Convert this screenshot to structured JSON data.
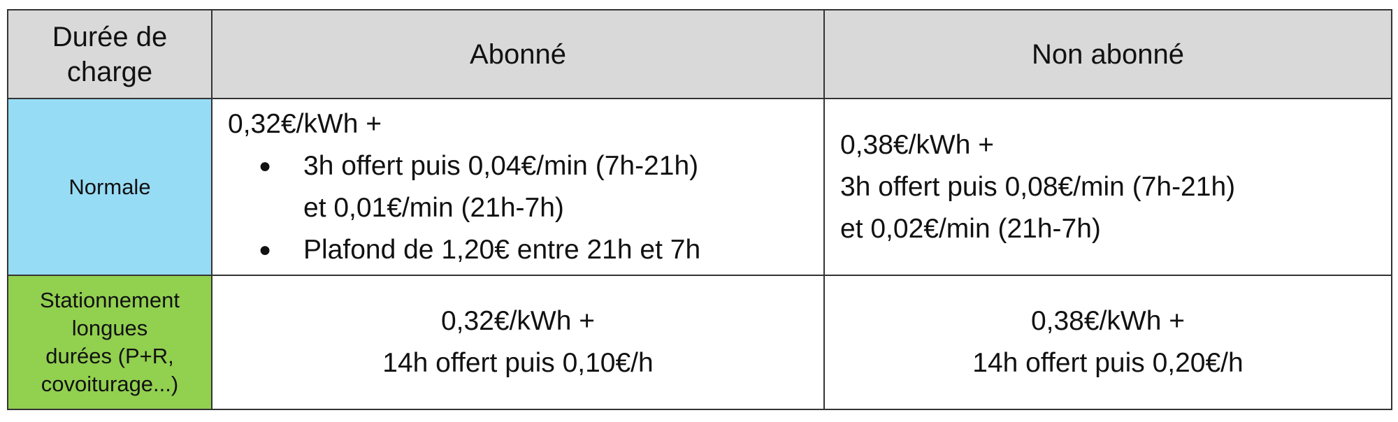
{
  "colors": {
    "header_bg": "#d9d9d9",
    "normale_bg": "#97dcf5",
    "stationnement_bg": "#92d050"
  },
  "header": {
    "col1": [
      "Durée de",
      "charge"
    ],
    "col2": "Abonné",
    "col3": "Non abonné"
  },
  "rows": [
    {
      "label": [
        "Normale"
      ],
      "abonne": {
        "intro": "0,32€/kWh +",
        "bullets": [
          [
            "3h offert puis 0,04€/min (7h-21h)",
            "et 0,01€/min (21h-7h)"
          ],
          [
            "Plafond de 1,20€ entre 21h et 7h"
          ]
        ]
      },
      "non_abonne": [
        "0,38€/kWh +",
        "3h offert puis 0,08€/min (7h-21h)",
        "et 0,02€/min (21h-7h)"
      ]
    },
    {
      "label": [
        "Stationnement",
        "longues",
        "durées (P+R,",
        "covoiturage...)"
      ],
      "abonne": [
        "0,32€/kWh +",
        "14h offert puis 0,10€/h"
      ],
      "non_abonne": [
        "0,38€/kWh +",
        "14h offert puis 0,20€/h"
      ]
    }
  ]
}
